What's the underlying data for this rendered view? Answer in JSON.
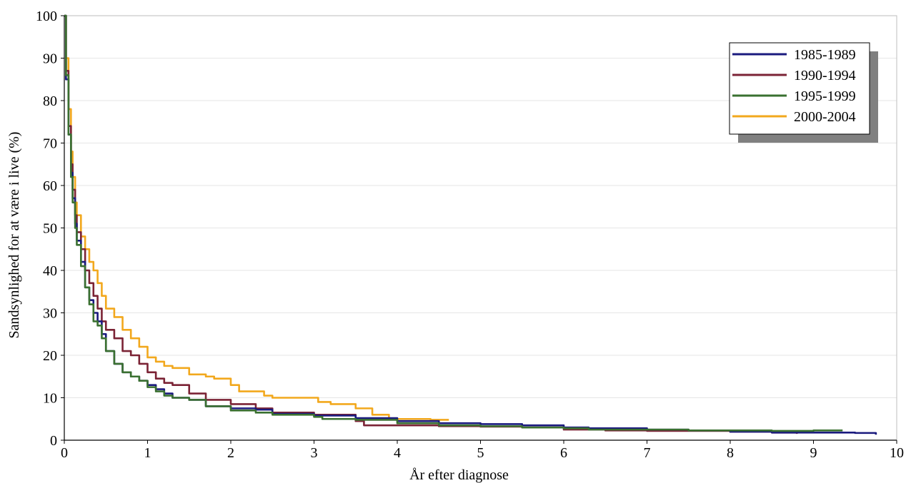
{
  "chart_data": {
    "type": "line",
    "title": "",
    "xlabel": "År efter diagnose",
    "ylabel": "Sandsynlighed for at være i live (%)",
    "xlim": [
      0,
      10
    ],
    "ylim": [
      0,
      100
    ],
    "xticks": [
      "0",
      "1",
      "2",
      "3",
      "4",
      "5",
      "6",
      "7",
      "8",
      "9",
      "10"
    ],
    "yticks": [
      "0",
      "10",
      "20",
      "30",
      "40",
      "50",
      "60",
      "70",
      "80",
      "90",
      "100"
    ],
    "grid": true,
    "legend_position": "top-right",
    "series": [
      {
        "name": "1985-1989",
        "color": "#1a1a7e",
        "points": [
          [
            0,
            100
          ],
          [
            0.02,
            85
          ],
          [
            0.05,
            72
          ],
          [
            0.08,
            63
          ],
          [
            0.1,
            57
          ],
          [
            0.13,
            51
          ],
          [
            0.15,
            47
          ],
          [
            0.2,
            42
          ],
          [
            0.25,
            36
          ],
          [
            0.3,
            33
          ],
          [
            0.35,
            30
          ],
          [
            0.4,
            28
          ],
          [
            0.45,
            25
          ],
          [
            0.5,
            21
          ],
          [
            0.6,
            18
          ],
          [
            0.7,
            16
          ],
          [
            0.8,
            15
          ],
          [
            0.9,
            14
          ],
          [
            1.0,
            13
          ],
          [
            1.1,
            12
          ],
          [
            1.2,
            11
          ],
          [
            1.3,
            10
          ],
          [
            1.5,
            9.5
          ],
          [
            1.7,
            8
          ],
          [
            2.0,
            7.5
          ],
          [
            2.3,
            7.2
          ],
          [
            2.5,
            6.2
          ],
          [
            3.0,
            5.8
          ],
          [
            3.5,
            5.2
          ],
          [
            4.0,
            4.5
          ],
          [
            4.5,
            4.0
          ],
          [
            5.0,
            3.8
          ],
          [
            5.5,
            3.5
          ],
          [
            6.0,
            3.0
          ],
          [
            6.3,
            2.8
          ],
          [
            7.0,
            2.5
          ],
          [
            7.5,
            2.3
          ],
          [
            8.0,
            2.0
          ],
          [
            8.5,
            1.8
          ],
          [
            9.0,
            1.8
          ],
          [
            9.5,
            1.7
          ],
          [
            9.75,
            1.3
          ]
        ]
      },
      {
        "name": "1990-1994",
        "color": "#7b2335",
        "points": [
          [
            0,
            100
          ],
          [
            0.02,
            87
          ],
          [
            0.05,
            74
          ],
          [
            0.08,
            65
          ],
          [
            0.1,
            59
          ],
          [
            0.13,
            53
          ],
          [
            0.15,
            49
          ],
          [
            0.2,
            45
          ],
          [
            0.25,
            40
          ],
          [
            0.3,
            37
          ],
          [
            0.35,
            34
          ],
          [
            0.4,
            31
          ],
          [
            0.45,
            28
          ],
          [
            0.5,
            26
          ],
          [
            0.6,
            24
          ],
          [
            0.7,
            21
          ],
          [
            0.8,
            20
          ],
          [
            0.9,
            18
          ],
          [
            1.0,
            16
          ],
          [
            1.1,
            14.5
          ],
          [
            1.2,
            13.5
          ],
          [
            1.3,
            13
          ],
          [
            1.5,
            11
          ],
          [
            1.7,
            9.5
          ],
          [
            2.0,
            8.5
          ],
          [
            2.3,
            7.5
          ],
          [
            2.5,
            6.5
          ],
          [
            3.0,
            6.0
          ],
          [
            3.5,
            4.5
          ],
          [
            3.6,
            3.5
          ],
          [
            4.0,
            3.5
          ],
          [
            4.5,
            3.3
          ],
          [
            5.0,
            3.2
          ],
          [
            5.5,
            3.0
          ],
          [
            6.0,
            2.5
          ],
          [
            6.5,
            2.3
          ],
          [
            7.0,
            2.2
          ],
          [
            7.5,
            2.2
          ],
          [
            8.0,
            2.0
          ],
          [
            8.5,
            1.8
          ],
          [
            8.8,
            1.5
          ]
        ]
      },
      {
        "name": "1995-1999",
        "color": "#3a7030",
        "points": [
          [
            0,
            100
          ],
          [
            0.02,
            86
          ],
          [
            0.05,
            72
          ],
          [
            0.08,
            62
          ],
          [
            0.1,
            56
          ],
          [
            0.13,
            50
          ],
          [
            0.15,
            46
          ],
          [
            0.2,
            41
          ],
          [
            0.25,
            36
          ],
          [
            0.3,
            32
          ],
          [
            0.35,
            28
          ],
          [
            0.4,
            27
          ],
          [
            0.45,
            24
          ],
          [
            0.5,
            21
          ],
          [
            0.6,
            18
          ],
          [
            0.7,
            16
          ],
          [
            0.8,
            15
          ],
          [
            0.9,
            14
          ],
          [
            1.0,
            12.5
          ],
          [
            1.1,
            11.5
          ],
          [
            1.2,
            10.5
          ],
          [
            1.3,
            10
          ],
          [
            1.5,
            9.5
          ],
          [
            1.7,
            8
          ],
          [
            2.0,
            7
          ],
          [
            2.3,
            6.5
          ],
          [
            2.5,
            6.0
          ],
          [
            3.0,
            5.5
          ],
          [
            3.1,
            5.0
          ],
          [
            3.5,
            4.8
          ],
          [
            4.0,
            4.0
          ],
          [
            4.5,
            3.5
          ],
          [
            5.0,
            3.3
          ],
          [
            5.5,
            3.0
          ],
          [
            6.0,
            2.8
          ],
          [
            6.3,
            2.5
          ],
          [
            7.0,
            2.5
          ],
          [
            7.5,
            2.3
          ],
          [
            8.0,
            2.3
          ],
          [
            8.5,
            2.2
          ],
          [
            9.0,
            2.3
          ],
          [
            9.35,
            2.3
          ]
        ]
      },
      {
        "name": "2000-2004",
        "color": "#f2a81d",
        "points": [
          [
            0,
            100
          ],
          [
            0.02,
            90
          ],
          [
            0.05,
            78
          ],
          [
            0.08,
            68
          ],
          [
            0.1,
            62
          ],
          [
            0.13,
            56
          ],
          [
            0.15,
            53
          ],
          [
            0.2,
            48
          ],
          [
            0.25,
            45
          ],
          [
            0.3,
            42
          ],
          [
            0.35,
            40
          ],
          [
            0.4,
            37
          ],
          [
            0.45,
            34
          ],
          [
            0.5,
            31
          ],
          [
            0.6,
            29
          ],
          [
            0.7,
            26
          ],
          [
            0.8,
            24
          ],
          [
            0.9,
            22
          ],
          [
            1.0,
            19.5
          ],
          [
            1.1,
            18.5
          ],
          [
            1.2,
            17.5
          ],
          [
            1.3,
            17
          ],
          [
            1.5,
            15.5
          ],
          [
            1.7,
            15
          ],
          [
            1.8,
            14.5
          ],
          [
            2.0,
            13
          ],
          [
            2.1,
            11.5
          ],
          [
            2.3,
            11.5
          ],
          [
            2.4,
            10.5
          ],
          [
            2.5,
            10.0
          ],
          [
            3.0,
            10.0
          ],
          [
            3.05,
            9.0
          ],
          [
            3.2,
            8.5
          ],
          [
            3.5,
            7.5
          ],
          [
            3.7,
            6.0
          ],
          [
            3.9,
            5.0
          ],
          [
            4.2,
            5.0
          ],
          [
            4.4,
            4.8
          ],
          [
            4.62,
            4.8
          ]
        ]
      }
    ]
  }
}
